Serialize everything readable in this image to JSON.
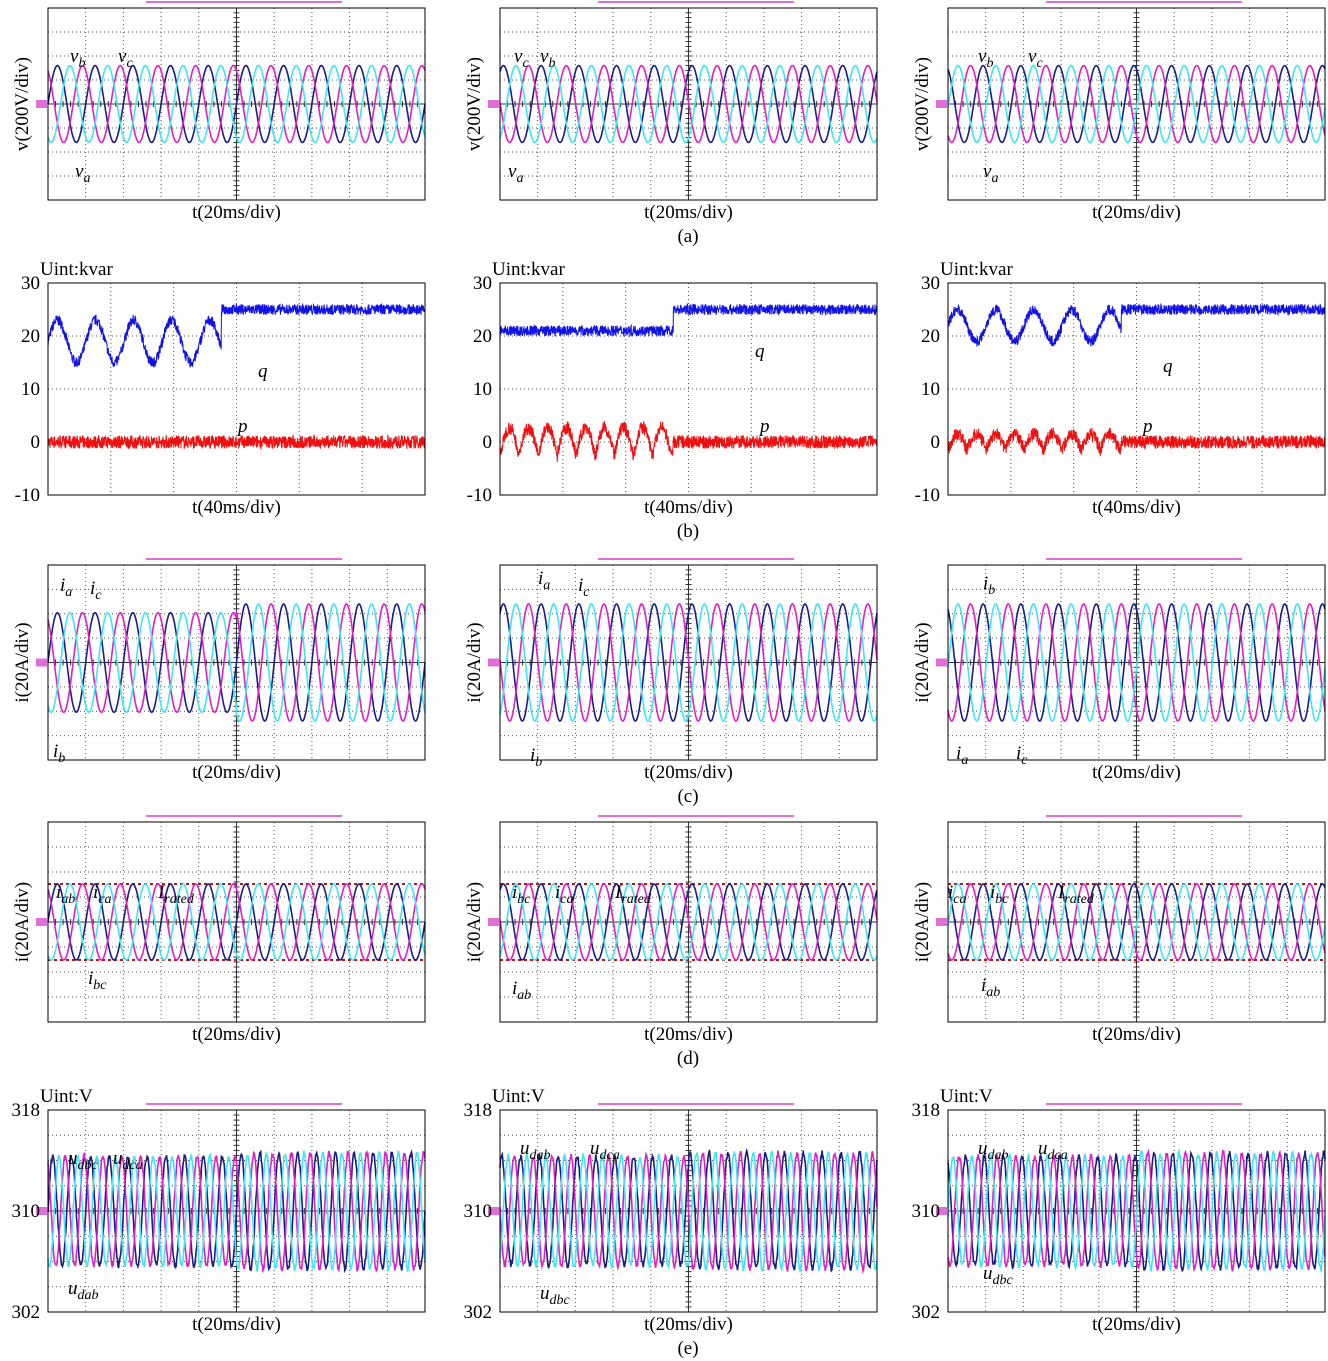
{
  "rows": [
    {
      "caption": "(a)",
      "panels": [
        {
          "y_label": "v(200V/div)",
          "x_label": "t(20ms/div)",
          "annotations": [
            {
              "text": "v",
              "sub": "b"
            },
            {
              "text": "v",
              "sub": "c"
            },
            {
              "text": "v",
              "sub": "a"
            }
          ]
        },
        {
          "y_label": "v(200V/div)",
          "x_label": "t(20ms/div)",
          "annotations": [
            {
              "text": "v",
              "sub": "c"
            },
            {
              "text": "v",
              "sub": "b"
            },
            {
              "text": "v",
              "sub": "a"
            }
          ]
        },
        {
          "y_label": "v(200V/div)",
          "x_label": "t(20ms/div)",
          "annotations": [
            {
              "text": "v",
              "sub": "b"
            },
            {
              "text": "v",
              "sub": "c"
            },
            {
              "text": "v",
              "sub": "a"
            }
          ]
        }
      ]
    },
    {
      "caption": "(b)",
      "panels": [
        {
          "unit": "Uint:kvar",
          "x_label": "t(40ms/div)",
          "ylim": [
            -10,
            30
          ],
          "yticks": [
            30,
            20,
            10,
            0,
            -10
          ],
          "annotations": [
            {
              "text": "q"
            },
            {
              "text": "p"
            }
          ]
        },
        {
          "unit": "Uint:kvar",
          "x_label": "t(40ms/div)",
          "ylim": [
            -10,
            30
          ],
          "yticks": [
            30,
            20,
            10,
            0,
            -10
          ],
          "annotations": [
            {
              "text": "q"
            },
            {
              "text": "p"
            }
          ]
        },
        {
          "unit": "Uint:kvar",
          "x_label": "t(40ms/div)",
          "ylim": [
            -10,
            30
          ],
          "yticks": [
            30,
            20,
            10,
            0,
            -10
          ],
          "annotations": [
            {
              "text": "q"
            },
            {
              "text": "p"
            }
          ]
        }
      ]
    },
    {
      "caption": "(c)",
      "panels": [
        {
          "y_label": "i(20A/div)",
          "x_label": "t(20ms/div)",
          "annotations": [
            {
              "text": "i",
              "sub": "a"
            },
            {
              "text": "i",
              "sub": "c"
            },
            {
              "text": "i",
              "sub": "b"
            }
          ]
        },
        {
          "y_label": "i(20A/div)",
          "x_label": "t(20ms/div)",
          "annotations": [
            {
              "text": "i",
              "sub": "a"
            },
            {
              "text": "i",
              "sub": "c"
            },
            {
              "text": "i",
              "sub": "b"
            }
          ]
        },
        {
          "y_label": "i(20A/div)",
          "x_label": "t(20ms/div)",
          "annotations": [
            {
              "text": "i",
              "sub": "b"
            },
            {
              "text": "i",
              "sub": "a"
            },
            {
              "text": "i",
              "sub": "c"
            }
          ]
        }
      ]
    },
    {
      "caption": "(d)",
      "panels": [
        {
          "y_label": "i(20A/div)",
          "x_label": "t(20ms/div)",
          "annotations": [
            {
              "text": "i",
              "sub": "ab"
            },
            {
              "text": "i",
              "sub": "ca"
            },
            {
              "text": "I",
              "sub": "rated"
            },
            {
              "text": "i",
              "sub": "bc"
            }
          ]
        },
        {
          "y_label": "i(20A/div)",
          "x_label": "t(20ms/div)",
          "annotations": [
            {
              "text": "i",
              "sub": "bc"
            },
            {
              "text": "i",
              "sub": "ca"
            },
            {
              "text": "I",
              "sub": "rated"
            },
            {
              "text": "i",
              "sub": "ab"
            }
          ]
        },
        {
          "y_label": "i(20A/div)",
          "x_label": "t(20ms/div)",
          "annotations": [
            {
              "text": "i",
              "sub": "ca"
            },
            {
              "text": "i",
              "sub": "bc"
            },
            {
              "text": "I",
              "sub": "rated"
            },
            {
              "text": "i",
              "sub": "ab"
            }
          ]
        }
      ]
    },
    {
      "caption": "(e)",
      "panels": [
        {
          "unit": "Uint:V",
          "x_label": "t(20ms/div)",
          "ylim": [
            302,
            318
          ],
          "yticks": [
            318,
            310,
            302
          ],
          "annotations": [
            {
              "text": "u",
              "sub": "dbc"
            },
            {
              "text": "u",
              "sub": "dca"
            },
            {
              "text": "u",
              "sub": "dab"
            }
          ]
        },
        {
          "unit": "Uint:V",
          "x_label": "t(20ms/div)",
          "ylim": [
            302,
            318
          ],
          "yticks": [
            318,
            310,
            302
          ],
          "annotations": [
            {
              "text": "u",
              "sub": "dab"
            },
            {
              "text": "u",
              "sub": "dca"
            },
            {
              "text": "u",
              "sub": "dbc"
            }
          ]
        },
        {
          "unit": "Uint:V",
          "x_label": "t(20ms/div)",
          "ylim": [
            302,
            318
          ],
          "yticks": [
            318,
            310,
            302
          ],
          "annotations": [
            {
              "text": "u",
              "sub": "dab"
            },
            {
              "text": "u",
              "sub": "dca"
            },
            {
              "text": "u",
              "sub": "dbc"
            }
          ]
        }
      ]
    }
  ]
}
